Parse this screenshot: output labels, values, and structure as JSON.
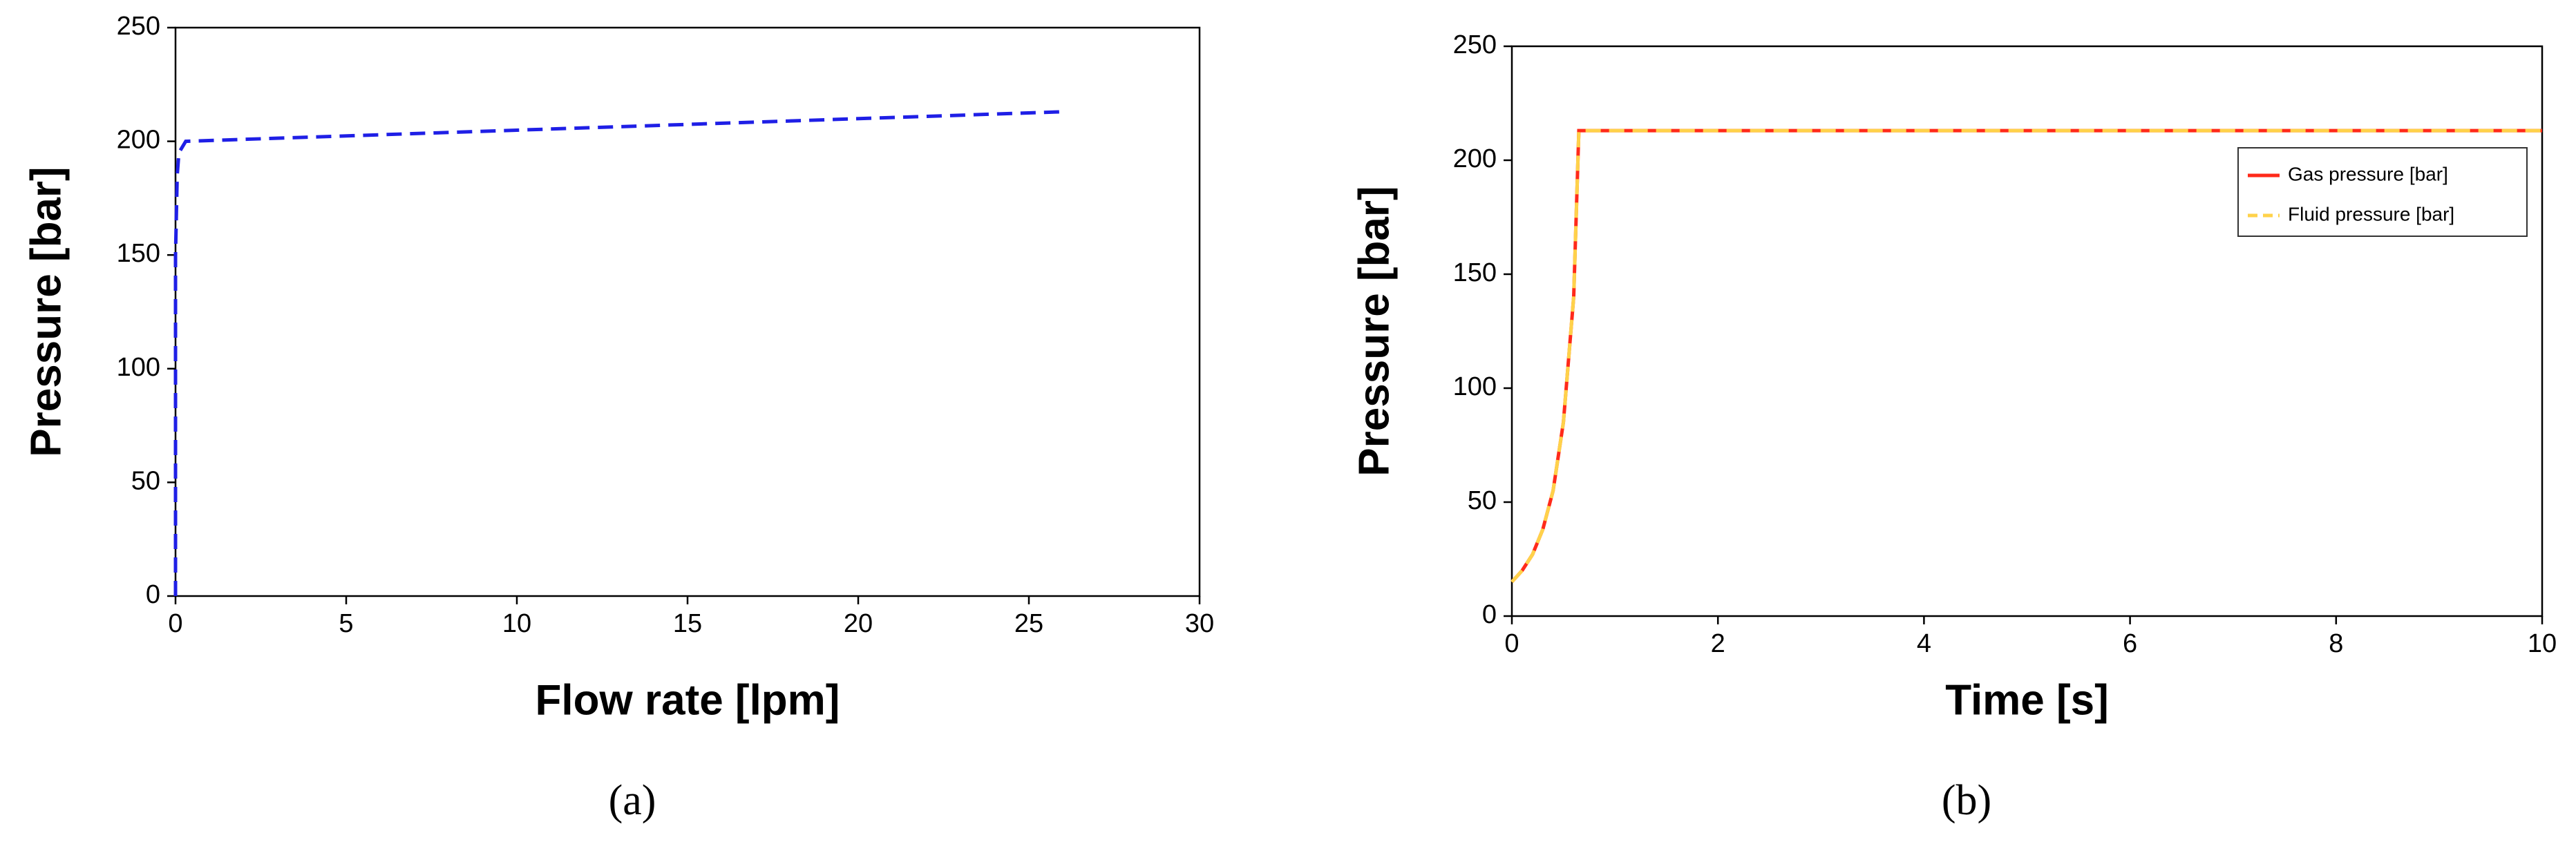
{
  "chart_data": [
    {
      "type": "line",
      "caption": "(a)",
      "x_label": "Flow rate [lpm]",
      "y_label": "Pressure [bar]",
      "x": [
        0,
        0,
        0.05,
        0.1,
        0.3,
        26
      ],
      "series": [
        {
          "color": "#1f1fe6",
          "line_style": "dashed",
          "values": [
            0,
            150,
            185,
            195,
            200,
            213
          ]
        }
      ],
      "xlim": [
        0,
        30
      ],
      "xticks": [
        0,
        5,
        10,
        15,
        20,
        25,
        30
      ],
      "ylim": [
        0,
        250
      ],
      "yticks": [
        0,
        50,
        100,
        150,
        200,
        250
      ],
      "grid": false
    },
    {
      "type": "line",
      "caption": "(b)",
      "x_label": "Time [s]",
      "y_label": "Pressure [bar]",
      "x": [
        0,
        0.1,
        0.2,
        0.3,
        0.4,
        0.5,
        0.6,
        0.65,
        10
      ],
      "series": [
        {
          "name": "Gas pressure [bar]",
          "color": "#ff2a1a",
          "line_style": "solid",
          "values": [
            15,
            20,
            27,
            38,
            55,
            85,
            140,
            213,
            213
          ]
        },
        {
          "name": "Fluid pressure [bar]",
          "color": "#ffd24a",
          "line_style": "dashed",
          "values": [
            15,
            20,
            27,
            38,
            55,
            85,
            140,
            213,
            213
          ]
        }
      ],
      "xlim": [
        0,
        10
      ],
      "xticks": [
        0,
        2,
        4,
        6,
        8,
        10
      ],
      "ylim": [
        0,
        250
      ],
      "yticks": [
        0,
        50,
        100,
        150,
        200,
        250
      ],
      "grid": false,
      "legend": "upper right"
    }
  ]
}
